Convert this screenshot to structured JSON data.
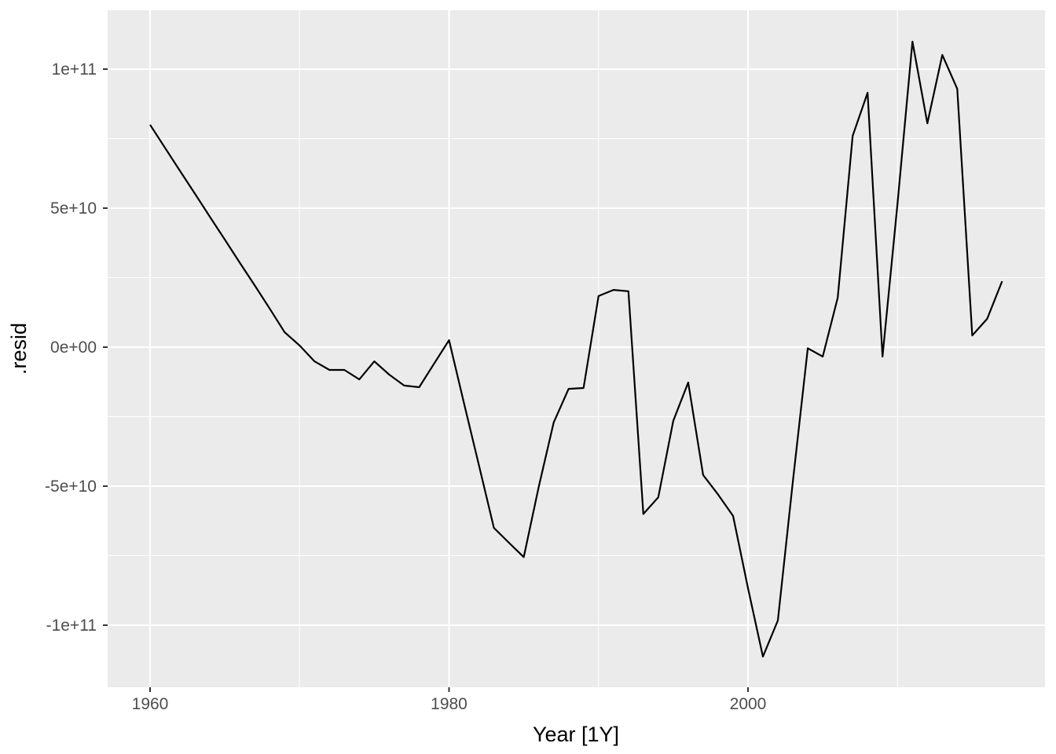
{
  "figure": {
    "background_color": "#FFFFFF"
  },
  "chart_data": {
    "type": "line",
    "title": "",
    "xlabel": "Year [1Y]",
    "ylabel": ".resid",
    "legend": "none",
    "grid": "on",
    "series": [
      {
        "name": ".resid",
        "color": "#000000",
        "x": [
          1960,
          1961,
          1962,
          1963,
          1964,
          1965,
          1966,
          1967,
          1968,
          1969,
          1970,
          1971,
          1972,
          1973,
          1974,
          1975,
          1976,
          1977,
          1978,
          1979,
          1980,
          1981,
          1982,
          1983,
          1984,
          1985,
          1986,
          1987,
          1988,
          1989,
          1990,
          1991,
          1992,
          1993,
          1994,
          1995,
          1996,
          1997,
          1998,
          1999,
          2000,
          2001,
          2002,
          2003,
          2004,
          2005,
          2006,
          2007,
          2008,
          2009,
          2010,
          2011,
          2012,
          2013,
          2014,
          2015,
          2016,
          2017
        ],
        "y_billions": [
          80.0,
          71.7,
          63.4,
          55.2,
          46.9,
          38.7,
          30.4,
          22.2,
          13.9,
          5.4,
          0.6,
          -5.1,
          -8.2,
          -8.2,
          -11.6,
          -5.1,
          -9.9,
          -13.8,
          -14.4,
          -5.9,
          2.5,
          -20.1,
          -42.4,
          -65.0,
          -70.3,
          -75.5,
          -50.3,
          -27.1,
          -15.0,
          -14.7,
          18.4,
          20.6,
          20.1,
          -60.0,
          -54.0,
          -26.5,
          -12.7,
          -46.0,
          -53.0,
          -60.7,
          -86.7,
          -111.3,
          -98.3,
          -48.3,
          -0.4,
          -3.4,
          17.8,
          76.0,
          91.5,
          -3.4,
          51.7,
          109.9,
          80.5,
          105.1,
          92.9,
          4.2,
          10.2,
          23.7
        ]
      }
    ],
    "x_axis": {
      "range": [
        1957.2,
        2019.9
      ],
      "ticks": [
        {
          "value": 1960,
          "label": "1960"
        },
        {
          "value": 1980,
          "label": "1980"
        },
        {
          "value": 2000,
          "label": "2000"
        }
      ],
      "minor_ticks": [
        1970,
        1990,
        2010
      ]
    },
    "y_axis": {
      "range_billions": [
        -122.3,
        121.2
      ],
      "ticks": [
        {
          "value_billions": 100,
          "label": "1e+11"
        },
        {
          "value_billions": 50,
          "label": "5e+10"
        },
        {
          "value_billions": 0,
          "label": "0e+00"
        },
        {
          "value_billions": -50,
          "label": "-5e+10"
        },
        {
          "value_billions": -100,
          "label": "-1e+11"
        }
      ],
      "minor_ticks_billions": [
        75,
        25,
        -25,
        -75
      ]
    },
    "style": {
      "panel_background": "#EBEBEB",
      "major_grid_color": "#FFFFFF",
      "minor_grid_color": "#FFFFFF",
      "tick_label_color": "#4D4D4D",
      "axis_title_color": "#000000",
      "tick_mark_color": "#333333",
      "line_color": "#000000"
    }
  }
}
